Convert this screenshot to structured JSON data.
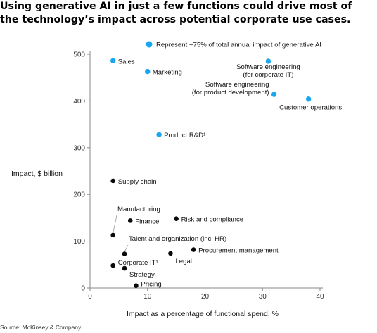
{
  "title": "Using generative AI in just a few functions could drive most of the technology’s impact across potential corporate use cases.",
  "source": "Source: McKinsey & Company",
  "colors": {
    "highlight": "#1ba6f1",
    "point": "#0a0a0a",
    "axis": "#888888",
    "text": "#111111"
  },
  "chart_data": {
    "type": "scatter",
    "xlabel": "Impact as a percentage of functional spend, %",
    "ylabel": "Impact, $ billion",
    "xlim": [
      0,
      40
    ],
    "ylim": [
      0,
      500
    ],
    "xticks": [
      0,
      10,
      20,
      30,
      40
    ],
    "yticks": [
      0,
      100,
      200,
      300,
      400,
      500
    ],
    "grid": false,
    "legend": {
      "text": "Represent ~75% of total annual impact of generative AI",
      "placement": "top"
    },
    "points": [
      {
        "label": "Sales",
        "x": 4,
        "y": 486,
        "highlight": true
      },
      {
        "label": "Marketing",
        "x": 10,
        "y": 463,
        "highlight": true
      },
      {
        "label": "Software engineering (for corporate IT)",
        "x": 31,
        "y": 485,
        "highlight": true
      },
      {
        "label": "Software engineering (for product development)",
        "x": 32,
        "y": 414,
        "highlight": true
      },
      {
        "label": "Customer operations",
        "x": 38,
        "y": 404,
        "highlight": true
      },
      {
        "label": "Product R&D¹",
        "x": 12,
        "y": 328,
        "highlight": true
      },
      {
        "label": "Supply chain",
        "x": 4,
        "y": 229,
        "highlight": false
      },
      {
        "label": "Manufacturing",
        "x": 4,
        "y": 113,
        "highlight": false
      },
      {
        "label": "Finance",
        "x": 7,
        "y": 144,
        "highlight": false
      },
      {
        "label": "Risk and compliance",
        "x": 15,
        "y": 148,
        "highlight": false
      },
      {
        "label": "Talent and organization (incl HR)",
        "x": 6,
        "y": 73,
        "highlight": false
      },
      {
        "label": "Procurement management",
        "x": 18,
        "y": 82,
        "highlight": false
      },
      {
        "label": "Legal",
        "x": 14,
        "y": 74,
        "highlight": false
      },
      {
        "label": "Corporate IT¹",
        "x": 4,
        "y": 48,
        "highlight": false
      },
      {
        "label": "Strategy",
        "x": 6,
        "y": 42,
        "highlight": false
      },
      {
        "label": "Pricing",
        "x": 8,
        "y": 5,
        "highlight": false
      }
    ]
  }
}
